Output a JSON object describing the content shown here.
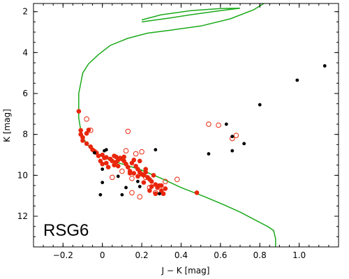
{
  "chart_data": {
    "type": "scatter",
    "panel_label": "RSG6",
    "xlabel": "J − K [mag]",
    "ylabel": "K [mag]",
    "xlim": [
      -0.35,
      1.2
    ],
    "ylim": [
      13.5,
      1.6
    ],
    "y_inverted": true,
    "grid": false,
    "legend": "none",
    "x_ticks": [
      -0.2,
      0,
      0.2,
      0.4,
      0.6,
      0.8,
      1.0
    ],
    "x_tick_labels": [
      "−0.2",
      "0",
      "0.2",
      "0.4",
      "0.6",
      "0.8",
      "1.0"
    ],
    "y_ticks": [
      2,
      4,
      6,
      8,
      10,
      12
    ],
    "y_tick_labels": [
      "2",
      "4",
      "6",
      "8",
      "10",
      "12"
    ],
    "colors": {
      "filled_red": "#e8260c",
      "open_red": "#e8260c",
      "black": "#000000",
      "isochrone": "#1aaa1a"
    },
    "series": [
      {
        "marker": "filled-red-circle",
        "points": [
          [
            -0.12,
            6.87
          ],
          [
            -0.11,
            7.8
          ],
          [
            -0.11,
            8.0
          ],
          [
            -0.1,
            8.15
          ],
          [
            -0.1,
            8.3
          ],
          [
            -0.08,
            7.95
          ],
          [
            -0.08,
            8.45
          ],
          [
            -0.07,
            7.78
          ],
          [
            -0.06,
            8.6
          ],
          [
            -0.05,
            8.75
          ],
          [
            -0.04,
            8.82
          ],
          [
            -0.03,
            8.9
          ],
          [
            -0.02,
            9.05
          ],
          [
            -0.01,
            9.3
          ],
          [
            0.0,
            9.45
          ],
          [
            0.0,
            9.0
          ],
          [
            0.01,
            9.15
          ],
          [
            0.02,
            9.12
          ],
          [
            0.03,
            9.6
          ],
          [
            0.04,
            9.2
          ],
          [
            0.05,
            9.3
          ],
          [
            0.06,
            9.05
          ],
          [
            0.07,
            9.1
          ],
          [
            0.08,
            9.25
          ],
          [
            0.09,
            9.15
          ],
          [
            0.1,
            9.2
          ],
          [
            0.11,
            9.3
          ],
          [
            0.12,
            9.45
          ],
          [
            0.13,
            9.6
          ],
          [
            0.14,
            9.8
          ],
          [
            0.15,
            9.4
          ],
          [
            0.16,
            9.9
          ],
          [
            0.17,
            9.55
          ],
          [
            0.18,
            9.7
          ],
          [
            0.19,
            9.85
          ],
          [
            0.2,
            9.95
          ],
          [
            0.21,
            10.0
          ],
          [
            0.22,
            9.7
          ],
          [
            0.23,
            10.1
          ],
          [
            0.24,
            10.2
          ],
          [
            0.25,
            10.3
          ],
          [
            0.26,
            10.0
          ],
          [
            0.27,
            10.45
          ],
          [
            0.28,
            10.6
          ],
          [
            0.29,
            10.5
          ],
          [
            0.3,
            10.75
          ],
          [
            0.31,
            10.9
          ],
          [
            0.32,
            10.65
          ],
          [
            0.16,
            9.25
          ],
          [
            0.11,
            9.1
          ],
          [
            0.07,
            9.35
          ],
          [
            0.19,
            9.3
          ],
          [
            0.22,
            9.85
          ],
          [
            0.25,
            10.55
          ],
          [
            0.27,
            10.9
          ],
          [
            0.48,
            10.85
          ],
          [
            0.14,
            9.9
          ],
          [
            0.06,
            9.5
          ],
          [
            0.02,
            9.4
          ],
          [
            0.3,
            10.5
          ],
          [
            0.18,
            10.05
          ],
          [
            0.08,
            9.55
          ],
          [
            0.21,
            10.35
          ],
          [
            0.24,
            10.75
          ]
        ]
      },
      {
        "marker": "open-red-circle",
        "points": [
          [
            -0.08,
            7.25
          ],
          [
            -0.06,
            7.8
          ],
          [
            0.13,
            7.85
          ],
          [
            0.12,
            8.8
          ],
          [
            0.2,
            8.85
          ],
          [
            0.17,
            8.95
          ],
          [
            0.1,
            9.8
          ],
          [
            0.15,
            10.15
          ],
          [
            0.22,
            10.1
          ],
          [
            0.24,
            10.6
          ],
          [
            0.27,
            10.85
          ],
          [
            0.38,
            10.2
          ],
          [
            0.19,
            11.05
          ],
          [
            0.15,
            10.85
          ],
          [
            0.54,
            7.5
          ],
          [
            0.59,
            7.55
          ],
          [
            0.68,
            8.05
          ],
          [
            0.66,
            8.2
          ],
          [
            0.32,
            10.3
          ],
          [
            0.05,
            10.1
          ]
        ]
      },
      {
        "marker": "black-dot",
        "points": [
          [
            -0.04,
            8.9
          ],
          [
            0.01,
            8.8
          ],
          [
            0.02,
            8.75
          ],
          [
            0.0,
            9.7
          ],
          [
            0.0,
            10.35
          ],
          [
            -0.01,
            10.95
          ],
          [
            0.1,
            10.95
          ],
          [
            0.12,
            10.6
          ],
          [
            0.18,
            10.3
          ],
          [
            0.19,
            10.55
          ],
          [
            0.27,
            8.75
          ],
          [
            0.29,
            10.9
          ],
          [
            0.54,
            8.95
          ],
          [
            0.63,
            7.5
          ],
          [
            0.66,
            8.1
          ],
          [
            0.66,
            8.8
          ],
          [
            0.72,
            8.45
          ],
          [
            0.8,
            6.55
          ],
          [
            0.99,
            5.35
          ],
          [
            1.13,
            4.65
          ],
          [
            0.08,
            10.05
          ]
        ]
      }
    ],
    "isochrone_upper_branch": [
      [
        0.2,
        2.4
      ],
      [
        0.3,
        2.15
      ],
      [
        0.45,
        1.95
      ],
      [
        0.6,
        1.85
      ],
      [
        0.7,
        1.83
      ],
      [
        0.6,
        1.95
      ],
      [
        0.45,
        2.15
      ],
      [
        0.35,
        2.3
      ],
      [
        0.2,
        2.5
      ]
    ],
    "isochrone": [
      [
        0.82,
        1.6
      ],
      [
        0.77,
        1.9
      ],
      [
        0.65,
        2.35
      ],
      [
        0.5,
        2.7
      ],
      [
        0.35,
        2.9
      ],
      [
        0.23,
        3.05
      ],
      [
        0.13,
        3.3
      ],
      [
        0.04,
        3.65
      ],
      [
        -0.02,
        4.1
      ],
      [
        -0.07,
        4.55
      ],
      [
        -0.1,
        5.0
      ],
      [
        -0.11,
        5.5
      ],
      [
        -0.12,
        6.0
      ],
      [
        -0.12,
        6.6
      ],
      [
        -0.12,
        7.2
      ],
      [
        -0.11,
        7.8
      ],
      [
        -0.09,
        8.3
      ],
      [
        -0.06,
        8.7
      ],
      [
        -0.02,
        9.0
      ],
      [
        0.05,
        9.3
      ],
      [
        0.12,
        9.5
      ],
      [
        0.2,
        9.75
      ],
      [
        0.3,
        10.15
      ],
      [
        0.4,
        10.6
      ],
      [
        0.52,
        11.05
      ],
      [
        0.62,
        11.45
      ],
      [
        0.7,
        11.8
      ],
      [
        0.78,
        12.2
      ],
      [
        0.84,
        12.5
      ],
      [
        0.87,
        12.7
      ],
      [
        0.88,
        13.1
      ],
      [
        0.88,
        13.5
      ]
    ]
  }
}
